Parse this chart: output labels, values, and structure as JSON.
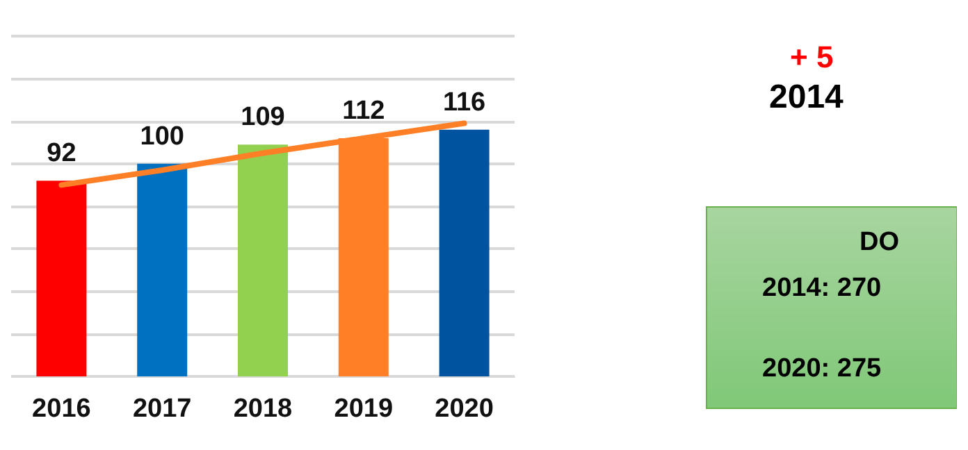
{
  "chart_data": {
    "type": "bar",
    "categories": [
      "2016",
      "2017",
      "2018",
      "2019",
      "2020"
    ],
    "series": [
      {
        "colors": [
          "#ff0000",
          "#0070c0",
          "#92d050",
          "#ff7f27",
          "#00539f"
        ],
        "values": [
          92,
          100,
          109,
          112,
          116
        ],
        "value_labels": [
          "92",
          "100",
          "109",
          "112",
          "116"
        ]
      },
      {
        "type": "line",
        "color": "#ff7f27",
        "values": [
          90,
          97,
          105,
          112,
          119
        ]
      }
    ],
    "ylim": [
      0,
      160
    ],
    "yticks": [
      {
        "value": 0,
        "label": null
      },
      {
        "value": 20,
        "label": null
      },
      {
        "value": 40,
        "label": null
      },
      {
        "value": 60,
        "label": null
      },
      {
        "value": 80,
        "label": null
      },
      {
        "value": 100,
        "label": null
      },
      {
        "value": 120,
        "label": null
      },
      {
        "value": 140,
        "label": null
      },
      {
        "value": 160,
        "label": null
      }
    ],
    "grid": "y",
    "marker": "none",
    "tick_labels": "x",
    "annotations": [
      "+ 5",
      "2014",
      "DO",
      "2014: 270",
      "2020: 275"
    ]
  }
}
